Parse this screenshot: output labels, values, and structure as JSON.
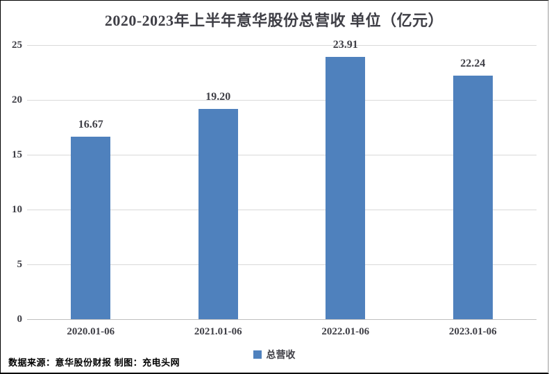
{
  "title": "2020-2023年上半年意华股份总营收 单位（亿元）",
  "legend": {
    "label": "总营收",
    "swatch_color": "#4F81BD"
  },
  "source_note": "数据来源：意华股份财报 制图：充电头网",
  "colors": {
    "bar": "#4F81BD",
    "gridline": "#d9d9d9",
    "axis_line": "#bfbfbf",
    "text": "#3f3f46",
    "source_text": "#000000"
  },
  "chart_data": {
    "type": "bar",
    "title": "2020-2023年上半年意华股份总营收 单位（亿元）",
    "categories": [
      "2020.01-06",
      "2021.01-06",
      "2022.01-06",
      "2023.01-06"
    ],
    "series": [
      {
        "name": "总营收",
        "values": [
          16.67,
          19.2,
          23.91,
          22.24
        ]
      }
    ],
    "value_labels": [
      "16.67",
      "19.20",
      "23.91",
      "22.24"
    ],
    "xlabel": "",
    "ylabel": "",
    "ylim": [
      0,
      25
    ],
    "yticks": [
      0,
      5,
      10,
      15,
      20,
      25
    ],
    "ytick_labels": [
      "0",
      "5",
      "10",
      "15",
      "20",
      "25"
    ],
    "grid": "horizontal",
    "legend_position": "bottom"
  }
}
